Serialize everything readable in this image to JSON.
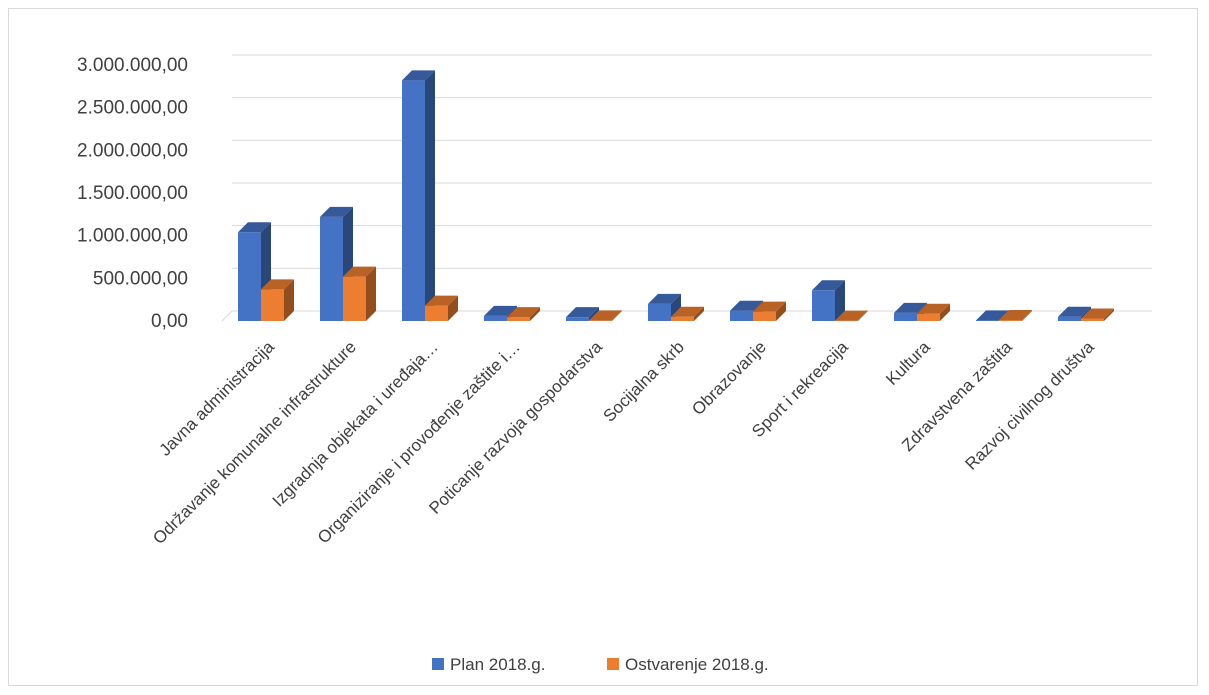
{
  "chart_data": {
    "type": "bar",
    "title": "",
    "xlabel": "",
    "ylabel": "",
    "ylim": [
      0,
      3000000
    ],
    "y_ticks": [
      "0,00",
      "500.000,00",
      "1.000.000,00",
      "1.500.000,00",
      "2.000.000,00",
      "2.500.000,00",
      "3.000.000,00"
    ],
    "grid": true,
    "legend": "bottom",
    "categories": [
      "Javna administracija",
      "Održavanje komunalne infrastrukture",
      "Izgradnja objekata i uređaja…",
      "Organiziranje i provođenje zaštite i…",
      "Poticanje razvoja gospodarstva",
      "Socijalna skrb",
      "Obrazovanje",
      "Sport i rekreacija",
      "Kultura",
      "Zdravstvena zaštita",
      "Razvoj civilnog društva"
    ],
    "series": [
      {
        "name": "Plan 2018.g.",
        "color": "#4472c4",
        "values": [
          1040000,
          1220000,
          2820000,
          60000,
          45000,
          200000,
          120000,
          360000,
          95000,
          8000,
          50000
        ]
      },
      {
        "name": "Ostvarenje 2018.g.",
        "color": "#ed7d31",
        "values": [
          370000,
          520000,
          180000,
          45000,
          8000,
          50000,
          110000,
          5000,
          85000,
          12000,
          30000
        ]
      }
    ]
  }
}
